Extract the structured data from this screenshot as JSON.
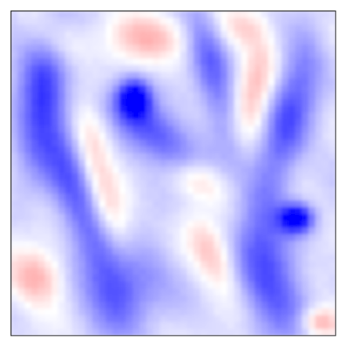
{
  "chart_data": {
    "type": "heatmap",
    "colormap": "bwr",
    "colors": {
      "low": "#0000ff",
      "mid": "#ffffff",
      "high": "#ff0000"
    },
    "value_range": [
      -1,
      1
    ],
    "axes_visible": false,
    "grid": false,
    "legend": "none",
    "features": [
      {
        "label": "blob",
        "x": 0.38,
        "y": 0.27,
        "value": -1.0,
        "sx": 0.035,
        "sy": 0.04
      },
      {
        "label": "blob",
        "x": 0.88,
        "y": 0.64,
        "value": -1.0,
        "sx": 0.035,
        "sy": 0.03
      },
      {
        "label": "ridge",
        "x": 0.45,
        "y": 0.38,
        "value": -0.6,
        "sx": 0.12,
        "sy": 0.05,
        "angle": 40
      },
      {
        "label": "ridge",
        "x": 0.2,
        "y": 0.55,
        "value": -0.55,
        "sx": 0.05,
        "sy": 0.25,
        "angle": -20
      },
      {
        "label": "ridge",
        "x": 0.85,
        "y": 0.35,
        "value": -0.55,
        "sx": 0.05,
        "sy": 0.2,
        "angle": 15
      },
      {
        "label": "ridge",
        "x": 0.8,
        "y": 0.82,
        "value": -0.55,
        "sx": 0.07,
        "sy": 0.14,
        "angle": -10
      },
      {
        "label": "ridge",
        "x": 0.1,
        "y": 0.25,
        "value": -0.45,
        "sx": 0.05,
        "sy": 0.18,
        "angle": 10
      },
      {
        "label": "ridge",
        "x": 0.62,
        "y": 0.18,
        "value": -0.45,
        "sx": 0.04,
        "sy": 0.16,
        "angle": -15
      },
      {
        "label": "ridge",
        "x": 0.35,
        "y": 0.85,
        "value": -0.45,
        "sx": 0.08,
        "sy": 0.1,
        "angle": 30
      },
      {
        "label": "patch",
        "x": 0.4,
        "y": 0.08,
        "value": 0.35,
        "sx": 0.1,
        "sy": 0.05,
        "angle": 0
      },
      {
        "label": "patch",
        "x": 0.75,
        "y": 0.25,
        "value": 0.35,
        "sx": 0.04,
        "sy": 0.12,
        "angle": 10
      },
      {
        "label": "patch",
        "x": 0.25,
        "y": 0.4,
        "value": 0.3,
        "sx": 0.04,
        "sy": 0.08,
        "angle": -10
      },
      {
        "label": "patch",
        "x": 0.3,
        "y": 0.62,
        "value": 0.35,
        "sx": 0.04,
        "sy": 0.1,
        "angle": -20
      },
      {
        "label": "patch",
        "x": 0.62,
        "y": 0.75,
        "value": 0.35,
        "sx": 0.04,
        "sy": 0.08,
        "angle": -30
      },
      {
        "label": "patch",
        "x": 0.08,
        "y": 0.82,
        "value": 0.4,
        "sx": 0.06,
        "sy": 0.06,
        "angle": 0
      },
      {
        "label": "patch",
        "x": 0.95,
        "y": 0.96,
        "value": 0.45,
        "sx": 0.04,
        "sy": 0.03,
        "angle": 0
      },
      {
        "label": "patch",
        "x": 0.58,
        "y": 0.52,
        "value": 0.3,
        "sx": 0.06,
        "sy": 0.04,
        "angle": 20
      },
      {
        "label": "patch",
        "x": 0.15,
        "y": 0.1,
        "value": 0.2,
        "sx": 0.05,
        "sy": 0.05,
        "angle": 0
      },
      {
        "label": "patch",
        "x": 0.72,
        "y": 0.05,
        "value": 0.25,
        "sx": 0.05,
        "sy": 0.04,
        "angle": 0
      }
    ]
  }
}
